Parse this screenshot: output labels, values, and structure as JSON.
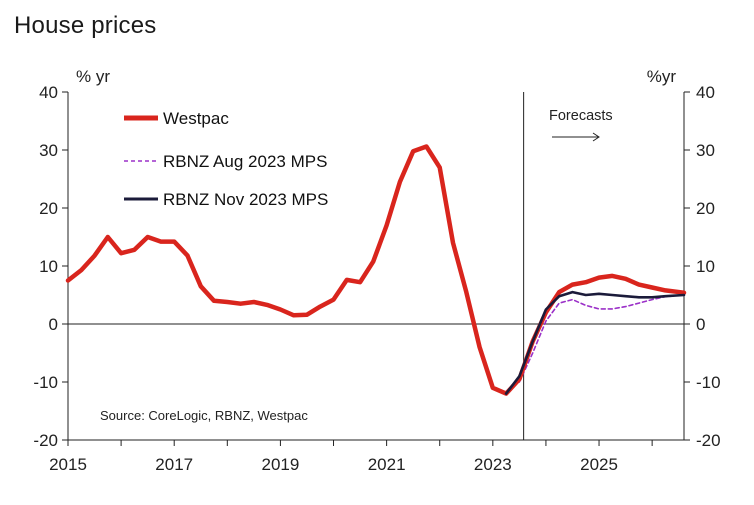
{
  "chart_data": {
    "type": "line",
    "title": "House prices",
    "ylabel_left": "% yr",
    "ylabel_right": "%yr",
    "ylim": [
      -20,
      40
    ],
    "yticks": [
      -20,
      -10,
      0,
      10,
      20,
      30,
      40
    ],
    "xlim": [
      2015,
      2026.6
    ],
    "xticks": [
      2015,
      2017,
      2019,
      2021,
      2023,
      2025
    ],
    "forecast_start": 2023.58,
    "forecast_label": "Forecasts",
    "source": "Source: CoreLogic, RBNZ, Westpac",
    "series": [
      {
        "name": "Westpac",
        "color": "#d9251d",
        "style": "solid-thick",
        "points": [
          [
            2015.0,
            7.5
          ],
          [
            2015.25,
            9.3
          ],
          [
            2015.5,
            11.8
          ],
          [
            2015.75,
            15.0
          ],
          [
            2016.0,
            12.2
          ],
          [
            2016.25,
            12.8
          ],
          [
            2016.5,
            15.0
          ],
          [
            2016.75,
            14.2
          ],
          [
            2017.0,
            14.2
          ],
          [
            2017.25,
            11.8
          ],
          [
            2017.5,
            6.5
          ],
          [
            2017.75,
            4.0
          ],
          [
            2018.0,
            3.8
          ],
          [
            2018.25,
            3.5
          ],
          [
            2018.5,
            3.8
          ],
          [
            2018.75,
            3.3
          ],
          [
            2019.0,
            2.5
          ],
          [
            2019.25,
            1.5
          ],
          [
            2019.5,
            1.6
          ],
          [
            2019.75,
            3.0
          ],
          [
            2020.0,
            4.2
          ],
          [
            2020.25,
            7.6
          ],
          [
            2020.5,
            7.2
          ],
          [
            2020.75,
            10.8
          ],
          [
            2021.0,
            17.0
          ],
          [
            2021.25,
            24.5
          ],
          [
            2021.5,
            29.8
          ],
          [
            2021.75,
            30.6
          ],
          [
            2022.0,
            27.0
          ],
          [
            2022.25,
            14.0
          ],
          [
            2022.5,
            5.5
          ],
          [
            2022.75,
            -4.0
          ],
          [
            2023.0,
            -11.0
          ],
          [
            2023.25,
            -12.0
          ],
          [
            2023.5,
            -9.5
          ],
          [
            2023.75,
            -3.0
          ],
          [
            2024.0,
            2.0
          ],
          [
            2024.25,
            5.5
          ],
          [
            2024.5,
            6.8
          ],
          [
            2024.75,
            7.2
          ],
          [
            2025.0,
            8.0
          ],
          [
            2025.25,
            8.3
          ],
          [
            2025.5,
            7.8
          ],
          [
            2025.75,
            6.8
          ],
          [
            2026.0,
            6.3
          ],
          [
            2026.25,
            5.8
          ],
          [
            2026.6,
            5.4
          ]
        ]
      },
      {
        "name": "RBNZ Aug 2023 MPS",
        "color": "#9b30c8",
        "style": "dashed",
        "points": [
          [
            2023.5,
            -10.0
          ],
          [
            2023.75,
            -5.0
          ],
          [
            2024.0,
            0.5
          ],
          [
            2024.25,
            3.6
          ],
          [
            2024.5,
            4.2
          ],
          [
            2024.75,
            3.2
          ],
          [
            2025.0,
            2.6
          ],
          [
            2025.25,
            2.6
          ],
          [
            2025.5,
            3.0
          ],
          [
            2025.75,
            3.6
          ],
          [
            2026.0,
            4.2
          ],
          [
            2026.25,
            4.7
          ],
          [
            2026.6,
            5.0
          ]
        ]
      },
      {
        "name": "RBNZ Nov 2023 MPS",
        "color": "#1b1b3a",
        "style": "solid",
        "points": [
          [
            2023.25,
            -12.0
          ],
          [
            2023.5,
            -9.0
          ],
          [
            2023.75,
            -3.0
          ],
          [
            2024.0,
            2.5
          ],
          [
            2024.25,
            4.8
          ],
          [
            2024.5,
            5.5
          ],
          [
            2024.75,
            5.0
          ],
          [
            2025.0,
            5.2
          ],
          [
            2025.25,
            5.0
          ],
          [
            2025.5,
            4.8
          ],
          [
            2025.75,
            4.6
          ],
          [
            2026.0,
            4.6
          ],
          [
            2026.25,
            4.8
          ],
          [
            2026.6,
            5.0
          ]
        ]
      }
    ]
  }
}
